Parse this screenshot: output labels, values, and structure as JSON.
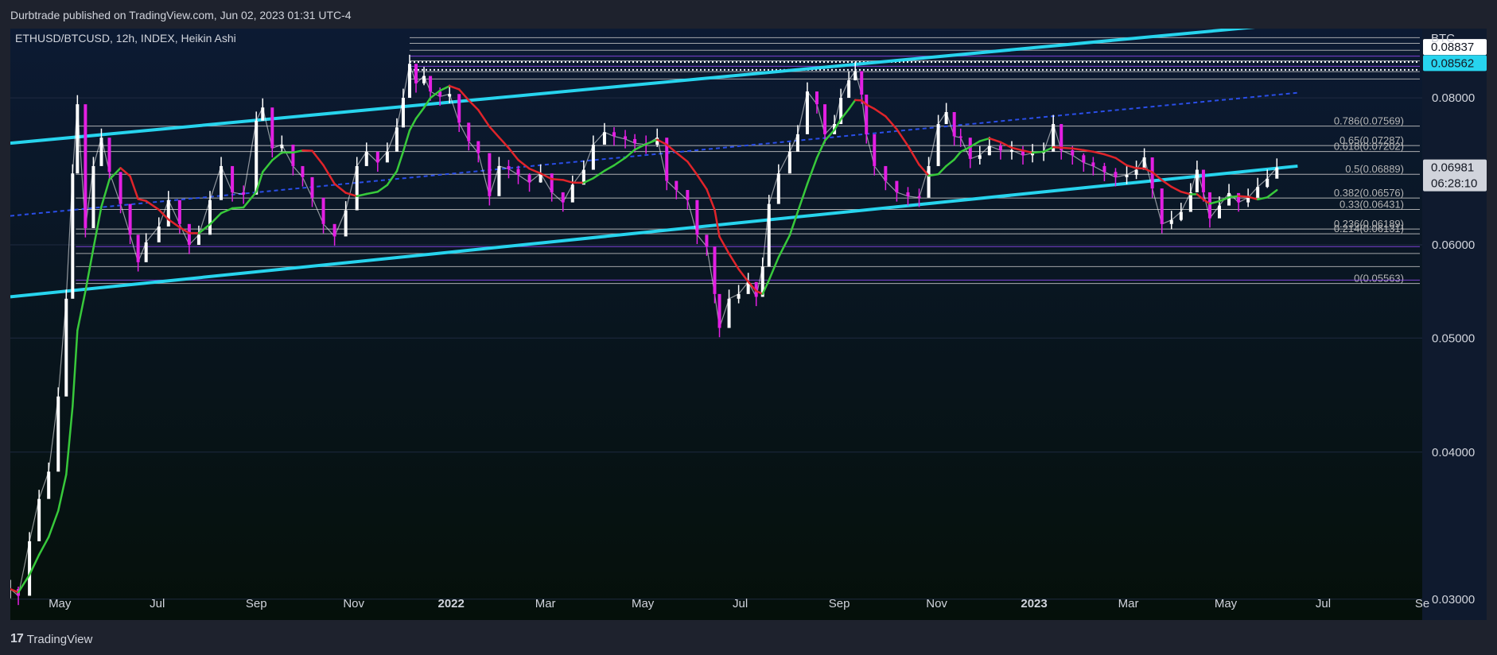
{
  "header": {
    "published": "Durbtrade published on TradingView.com, Jun 02, 2023 01:31 UTC-4"
  },
  "footer": {
    "logo_mark": "17",
    "brand": "TradingView"
  },
  "colors": {
    "background_top": "#0c1a33",
    "background_bottom": "#05100a",
    "channel": "#27d4ee",
    "dotted": "#2a4ee8",
    "ma_red": "#e0242a",
    "ma_green": "#38c93b",
    "candle_up": "#ffffff",
    "candle_down": "#e31fe3",
    "fib": "#c9c9c9",
    "fib_purple": "#9b4cff"
  },
  "chart_data": {
    "type": "line",
    "title": "ETHUSD/BTCUSD, 12h, INDEX, Heikin Ashi",
    "currency": "BTC",
    "xlabel": "",
    "ylabel": "",
    "scale": "log",
    "ylim": [
      0.0288,
      0.0916
    ],
    "x_ticks": [
      "May",
      "Jul",
      "Sep",
      "Nov",
      "2022",
      "Mar",
      "May",
      "Jul",
      "Sep",
      "Nov",
      "2023",
      "Mar",
      "May",
      "Jul",
      "Se"
    ],
    "y_ticks": [
      "0.08000",
      "0.06000",
      "0.05000",
      "0.04000",
      "0.03000"
    ],
    "price_labels": [
      {
        "value": 0.08837,
        "text": "0.08837",
        "style": "white"
      },
      {
        "value": 0.08562,
        "text": "0.08562",
        "style": "cyan"
      },
      {
        "value": 0.06981,
        "text": "0.06981",
        "style": "current",
        "countdown": "06:28:10"
      }
    ],
    "series": [
      {
        "name": "ETHUSD/BTCUSD",
        "points": [
          [
            "2021-03-31",
            0.0306
          ],
          [
            "2021-04-05",
            0.0302
          ],
          [
            "2021-04-12",
            0.0336
          ],
          [
            "2021-04-18",
            0.0365
          ],
          [
            "2021-04-24",
            0.0385
          ],
          [
            "2021-04-30",
            0.0446
          ],
          [
            "2021-05-05",
            0.054
          ],
          [
            "2021-05-09",
            0.069
          ],
          [
            "2021-05-12",
            0.079
          ],
          [
            "2021-05-17",
            0.062
          ],
          [
            "2021-05-22",
            0.07
          ],
          [
            "2021-05-27",
            0.074
          ],
          [
            "2021-06-01",
            0.0692
          ],
          [
            "2021-06-08",
            0.065
          ],
          [
            "2021-06-14",
            0.0612
          ],
          [
            "2021-06-19",
            0.058
          ],
          [
            "2021-06-24",
            0.0603
          ],
          [
            "2021-07-02",
            0.0622
          ],
          [
            "2021-07-08",
            0.0655
          ],
          [
            "2021-07-15",
            0.0625
          ],
          [
            "2021-07-21",
            0.06
          ],
          [
            "2021-07-27",
            0.0612
          ],
          [
            "2021-08-03",
            0.0655
          ],
          [
            "2021-08-10",
            0.07
          ],
          [
            "2021-08-17",
            0.0665
          ],
          [
            "2021-08-24",
            0.0662
          ],
          [
            "2021-09-01",
            0.0765
          ],
          [
            "2021-09-05",
            0.0785
          ],
          [
            "2021-09-11",
            0.0725
          ],
          [
            "2021-09-17",
            0.073
          ],
          [
            "2021-09-24",
            0.07
          ],
          [
            "2021-09-30",
            0.0685
          ],
          [
            "2021-10-06",
            0.0658
          ],
          [
            "2021-10-13",
            0.0625
          ],
          [
            "2021-10-20",
            0.061
          ],
          [
            "2021-10-27",
            0.0642
          ],
          [
            "2021-11-03",
            0.07
          ],
          [
            "2021-11-09",
            0.072
          ],
          [
            "2021-11-16",
            0.0705
          ],
          [
            "2021-11-22",
            0.072
          ],
          [
            "2021-11-28",
            0.0755
          ],
          [
            "2021-12-02",
            0.08
          ],
          [
            "2021-12-06",
            0.0855
          ],
          [
            "2021-12-10",
            0.0823
          ],
          [
            "2021-12-15",
            0.0835
          ],
          [
            "2021-12-19",
            0.081
          ],
          [
            "2021-12-25",
            0.0802
          ],
          [
            "2021-12-31",
            0.0806
          ],
          [
            "2022-01-06",
            0.0762
          ],
          [
            "2022-01-12",
            0.0735
          ],
          [
            "2022-01-18",
            0.0718
          ],
          [
            "2022-01-25",
            0.066
          ],
          [
            "2022-01-31",
            0.07
          ],
          [
            "2022-02-06",
            0.0696
          ],
          [
            "2022-02-12",
            0.0688
          ],
          [
            "2022-02-19",
            0.0678
          ],
          [
            "2022-02-26",
            0.069
          ],
          [
            "2022-03-05",
            0.0665
          ],
          [
            "2022-03-12",
            0.0652
          ],
          [
            "2022-03-18",
            0.0675
          ],
          [
            "2022-03-25",
            0.0695
          ],
          [
            "2022-03-31",
            0.073
          ],
          [
            "2022-04-07",
            0.0748
          ],
          [
            "2022-04-13",
            0.0742
          ],
          [
            "2022-04-20",
            0.0738
          ],
          [
            "2022-04-26",
            0.0732
          ],
          [
            "2022-05-03",
            0.073
          ],
          [
            "2022-05-10",
            0.074
          ],
          [
            "2022-05-16",
            0.068
          ],
          [
            "2022-05-22",
            0.0668
          ],
          [
            "2022-05-29",
            0.0655
          ],
          [
            "2022-06-04",
            0.0612
          ],
          [
            "2022-06-10",
            0.0598
          ],
          [
            "2022-06-15",
            0.0545
          ],
          [
            "2022-06-18",
            0.051
          ],
          [
            "2022-06-24",
            0.054
          ],
          [
            "2022-06-30",
            0.0545
          ],
          [
            "2022-07-06",
            0.0558
          ],
          [
            "2022-07-11",
            0.0542
          ],
          [
            "2022-07-15",
            0.0575
          ],
          [
            "2022-07-19",
            0.065
          ],
          [
            "2022-07-25",
            0.069
          ],
          [
            "2022-08-01",
            0.072
          ],
          [
            "2022-08-06",
            0.0745
          ],
          [
            "2022-08-12",
            0.081
          ],
          [
            "2022-08-18",
            0.079
          ],
          [
            "2022-08-23",
            0.0745
          ],
          [
            "2022-08-29",
            0.076
          ],
          [
            "2022-09-02",
            0.08
          ],
          [
            "2022-09-07",
            0.0828
          ],
          [
            "2022-09-11",
            0.0843
          ],
          [
            "2022-09-15",
            0.0805
          ],
          [
            "2022-09-18",
            0.0745
          ],
          [
            "2022-09-23",
            0.07
          ],
          [
            "2022-09-30",
            0.068
          ],
          [
            "2022-10-07",
            0.0665
          ],
          [
            "2022-10-14",
            0.066
          ],
          [
            "2022-10-21",
            0.0658
          ],
          [
            "2022-10-27",
            0.07
          ],
          [
            "2022-11-02",
            0.076
          ],
          [
            "2022-11-07",
            0.0778
          ],
          [
            "2022-11-12",
            0.0742
          ],
          [
            "2022-11-16",
            0.074
          ],
          [
            "2022-11-22",
            0.071
          ],
          [
            "2022-11-28",
            0.0715
          ],
          [
            "2022-12-04",
            0.0728
          ],
          [
            "2022-12-11",
            0.0722
          ],
          [
            "2022-12-18",
            0.0722
          ],
          [
            "2022-12-25",
            0.0715
          ],
          [
            "2022-12-31",
            0.0718
          ],
          [
            "2023-01-07",
            0.072
          ],
          [
            "2023-01-13",
            0.076
          ],
          [
            "2023-01-18",
            0.0722
          ],
          [
            "2023-01-25",
            0.0715
          ],
          [
            "2023-02-01",
            0.0705
          ],
          [
            "2023-02-07",
            0.07
          ],
          [
            "2023-02-14",
            0.0692
          ],
          [
            "2023-02-21",
            0.0685
          ],
          [
            "2023-02-28",
            0.0688
          ],
          [
            "2023-03-06",
            0.0695
          ],
          [
            "2023-03-11",
            0.0712
          ],
          [
            "2023-03-16",
            0.067
          ],
          [
            "2023-03-22",
            0.0625
          ],
          [
            "2023-03-28",
            0.063
          ],
          [
            "2023-04-03",
            0.064
          ],
          [
            "2023-04-09",
            0.0665
          ],
          [
            "2023-04-13",
            0.0695
          ],
          [
            "2023-04-17",
            0.0665
          ],
          [
            "2023-04-21",
            0.0632
          ],
          [
            "2023-04-27",
            0.0648
          ],
          [
            "2023-05-03",
            0.0664
          ],
          [
            "2023-05-09",
            0.0652
          ],
          [
            "2023-05-15",
            0.0658
          ],
          [
            "2023-05-21",
            0.0672
          ],
          [
            "2023-05-27",
            0.0683
          ],
          [
            "2023-06-02",
            0.0698
          ]
        ]
      }
    ],
    "fib_levels": [
      {
        "ratio": "0",
        "value": 0.05563,
        "label": "0(0.05563)"
      },
      {
        "ratio": "0.214",
        "value": 0.06131,
        "label": "0.214(0.06131)"
      },
      {
        "ratio": "0.236",
        "value": 0.06189,
        "label": "0.236(0.06189)"
      },
      {
        "ratio": "0.33",
        "value": 0.06431,
        "label": "0.33(0.06431)"
      },
      {
        "ratio": "0.382",
        "value": 0.06576,
        "label": "0.382(0.06576)"
      },
      {
        "ratio": "0.5",
        "value": 0.06889,
        "label": "0.5(0.06889)"
      },
      {
        "ratio": "0.618",
        "value": 0.07202,
        "label": "0.618(0.07202)"
      },
      {
        "ratio": "0.65",
        "value": 0.07287,
        "label": "0.65(0.07287)"
      },
      {
        "ratio": "0.786",
        "value": 0.07569,
        "label": "0.786(0.07569)"
      }
    ],
    "channel_lines": [
      {
        "name": "upper",
        "start": [
          "2021-03-31",
          0.0732
        ],
        "end": [
          "2023-06-15",
          0.0926
        ]
      },
      {
        "name": "lower",
        "start": [
          "2021-03-31",
          0.0542
        ],
        "end": [
          "2023-06-15",
          0.07
        ]
      },
      {
        "name": "mid",
        "start": [
          "2021-03-31",
          0.0635
        ],
        "end": [
          "2023-06-15",
          0.0808
        ]
      }
    ]
  }
}
